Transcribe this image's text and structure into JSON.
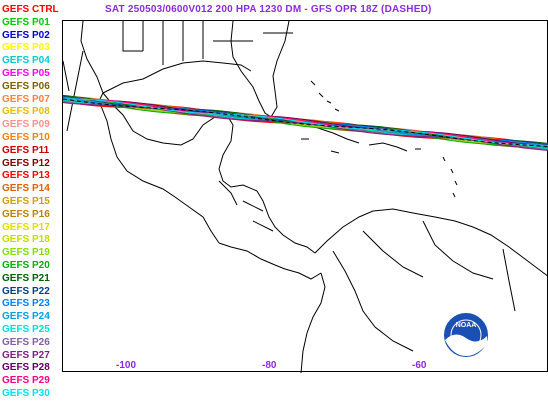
{
  "title": "SAT 250503/0600V012  200 HPA 1230 DM - GFS OPR 18Z (DASHED)",
  "legend": [
    {
      "label": "GEFS CTRL",
      "color": "#ff0000"
    },
    {
      "label": "GEFS P01",
      "color": "#00cc00"
    },
    {
      "label": "GEFS P02",
      "color": "#0000cc"
    },
    {
      "label": "GEFS P03",
      "color": "#ffff00"
    },
    {
      "label": "GEFS P04",
      "color": "#00cccc"
    },
    {
      "label": "GEFS P05",
      "color": "#ff00ff"
    },
    {
      "label": "GEFS P06",
      "color": "#806000"
    },
    {
      "label": "GEFS P07",
      "color": "#ff8040"
    },
    {
      "label": "GEFS P08",
      "color": "#e0c000"
    },
    {
      "label": "GEFS P09",
      "color": "#ff9090"
    },
    {
      "label": "GEFS P10",
      "color": "#ff8000"
    },
    {
      "label": "GEFS P11",
      "color": "#cc0000"
    },
    {
      "label": "GEFS P12",
      "color": "#800000"
    },
    {
      "label": "GEFS P13",
      "color": "#ff0000"
    },
    {
      "label": "GEFS P14",
      "color": "#e06000"
    },
    {
      "label": "GEFS P15",
      "color": "#d0a000"
    },
    {
      "label": "GEFS P16",
      "color": "#c08000"
    },
    {
      "label": "GEFS P17",
      "color": "#e0e000"
    },
    {
      "label": "GEFS P18",
      "color": "#c0e000"
    },
    {
      "label": "GEFS P19",
      "color": "#80e000"
    },
    {
      "label": "GEFS P20",
      "color": "#00b000"
    },
    {
      "label": "GEFS P21",
      "color": "#006000"
    },
    {
      "label": "GEFS P22",
      "color": "#004080"
    },
    {
      "label": "GEFS P23",
      "color": "#0080ff"
    },
    {
      "label": "GEFS P24",
      "color": "#00a0e0"
    },
    {
      "label": "GEFS P25",
      "color": "#00e0e0"
    },
    {
      "label": "GEFS P26",
      "color": "#8060a0"
    },
    {
      "label": "GEFS P27",
      "color": "#802080"
    },
    {
      "label": "GEFS P28",
      "color": "#600060"
    },
    {
      "label": "GEFS P29",
      "color": "#ff0080"
    },
    {
      "label": "GEFS P30",
      "color": "#00e0ff"
    }
  ],
  "longitudes": [
    "-100",
    "-80",
    "-60"
  ],
  "colors": {
    "title": "#8a2be2",
    "axis": "#8a2be2",
    "land": "#000000"
  }
}
